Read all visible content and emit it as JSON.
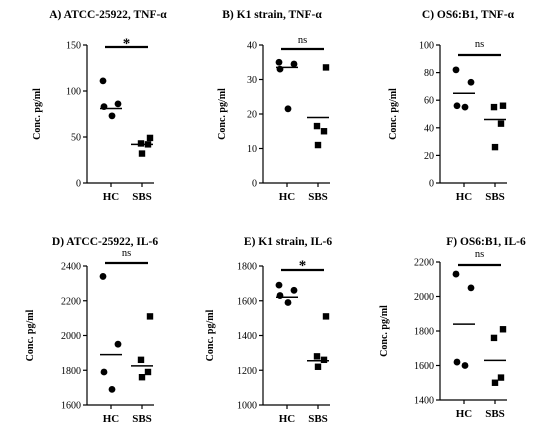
{
  "chart_data": [
    {
      "type": "scatter",
      "title": "A) ATCC-25922, TNF-α",
      "ylabel": "Conc. pg/ml",
      "categories": [
        "HC",
        "SBS"
      ],
      "ylim": [
        0,
        150
      ],
      "yticks": [
        0,
        50,
        100,
        150
      ],
      "significance": "*",
      "series": [
        {
          "category": "HC",
          "marker": "circle",
          "values": [
            111,
            86,
            83,
            73
          ],
          "mean": 81
        },
        {
          "category": "SBS",
          "marker": "square",
          "values": [
            49,
            43,
            42,
            32
          ],
          "mean": 42
        }
      ]
    },
    {
      "type": "scatter",
      "title": "B) K1 strain, TNF-α",
      "ylabel": "Conc. pg/ml",
      "categories": [
        "HC",
        "SBS"
      ],
      "ylim": [
        0,
        40
      ],
      "yticks": [
        0,
        10,
        20,
        30,
        40
      ],
      "significance": "ns",
      "series": [
        {
          "category": "HC",
          "marker": "circle",
          "values": [
            35,
            34.5,
            33,
            21.5
          ],
          "mean": 33.5
        },
        {
          "category": "SBS",
          "marker": "square",
          "values": [
            33.5,
            16.5,
            15,
            11
          ],
          "mean": 19
        }
      ]
    },
    {
      "type": "scatter",
      "title": "C) OS6:B1, TNF-α",
      "ylabel": "Conc. pg/ml",
      "categories": [
        "HC",
        "SBS"
      ],
      "ylim": [
        0,
        100
      ],
      "yticks": [
        0,
        20,
        40,
        60,
        80,
        100
      ],
      "significance": "ns",
      "series": [
        {
          "category": "HC",
          "marker": "circle",
          "values": [
            82,
            73,
            56,
            55
          ],
          "mean": 65
        },
        {
          "category": "SBS",
          "marker": "square",
          "values": [
            56,
            55,
            43,
            26
          ],
          "mean": 46
        }
      ]
    },
    {
      "type": "scatter",
      "title": "D) ATCC-25922, IL-6",
      "ylabel": "Conc. pg/ml",
      "categories": [
        "HC",
        "SBS"
      ],
      "ylim": [
        1600,
        2400
      ],
      "yticks": [
        1600,
        1800,
        2000,
        2200,
        2400
      ],
      "significance": "ns",
      "series": [
        {
          "category": "HC",
          "marker": "circle",
          "values": [
            2340,
            1950,
            1790,
            1690
          ],
          "mean": 1890
        },
        {
          "category": "SBS",
          "marker": "square",
          "values": [
            2110,
            1860,
            1790,
            1760
          ],
          "mean": 1825
        }
      ]
    },
    {
      "type": "scatter",
      "title": "E) K1 strain, IL-6",
      "ylabel": "Conc. pg/ml",
      "categories": [
        "HC",
        "SBS"
      ],
      "ylim": [
        1000,
        1800
      ],
      "yticks": [
        1000,
        1200,
        1400,
        1600,
        1800
      ],
      "significance": "*",
      "series": [
        {
          "category": "HC",
          "marker": "circle",
          "values": [
            1690,
            1660,
            1630,
            1590
          ],
          "mean": 1620
        },
        {
          "category": "SBS",
          "marker": "square",
          "values": [
            1510,
            1280,
            1260,
            1220
          ],
          "mean": 1255
        }
      ]
    },
    {
      "type": "scatter",
      "title": "F) OS6:B1, IL-6",
      "ylabel": "Conc. pg/ml",
      "categories": [
        "HC",
        "SBS"
      ],
      "ylim": [
        1400,
        2200
      ],
      "yticks": [
        1400,
        1600,
        1800,
        2000,
        2200
      ],
      "significance": "ns",
      "series": [
        {
          "category": "HC",
          "marker": "circle",
          "values": [
            2130,
            2050,
            1620,
            1600
          ],
          "mean": 1840
        },
        {
          "category": "SBS",
          "marker": "square",
          "values": [
            1810,
            1760,
            1530,
            1500
          ],
          "mean": 1630
        }
      ]
    }
  ]
}
